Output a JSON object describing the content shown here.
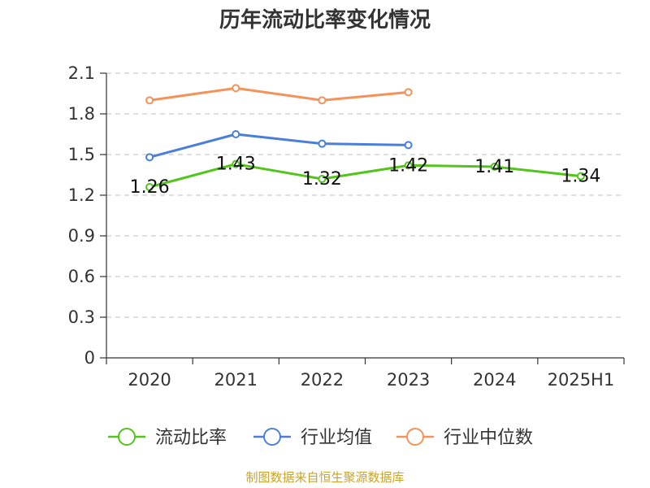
{
  "chart_data": {
    "type": "line",
    "title": "历年流动比率变化情况",
    "categories": [
      "2020",
      "2021",
      "2022",
      "2023",
      "2024",
      "2025H1"
    ],
    "y_ticks": [
      "0",
      "0.3",
      "0.6",
      "0.9",
      "1.2",
      "1.5",
      "1.8",
      "2.1"
    ],
    "ylim": [
      0,
      2.1
    ],
    "grid": true,
    "legend_position": "bottom",
    "series": [
      {
        "name": "流动比率",
        "color": "#52c41a",
        "values": [
          1.26,
          1.43,
          1.32,
          1.42,
          1.41,
          1.34
        ],
        "labels": [
          "1.26",
          "1.43",
          "1.32",
          "1.42",
          "1.41",
          "1.34"
        ]
      },
      {
        "name": "行业均值",
        "color": "#4a7fd9",
        "values": [
          1.48,
          1.65,
          1.58,
          1.57,
          null,
          null
        ]
      },
      {
        "name": "行业中位数",
        "color": "#f5925a",
        "values": [
          1.9,
          1.99,
          1.9,
          1.96,
          null,
          null
        ]
      }
    ]
  },
  "footer": {
    "source": "制图数据来自恒生聚源数据库"
  }
}
